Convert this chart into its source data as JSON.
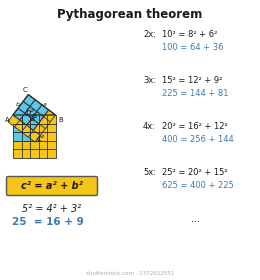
{
  "title": "Pythagorean theorem",
  "title_fontsize": 8.5,
  "bg_color": "#ffffff",
  "cyan_color": "#5bc8e8",
  "yellow_color": "#f5c518",
  "dark_color": "#1a1a1a",
  "blue_text_color": "#3d7ab5",
  "formula_text": "c² = a² + b²",
  "base_eq_line1": "5² = 4² + 3²",
  "base_eq_line2": "25  = 16 + 9",
  "multiples": [
    {
      "mult": "2x:",
      "eq1": "10² = 8² + 6²",
      "eq2": "100 = 64 + 36"
    },
    {
      "mult": "3x:",
      "eq1": "15² = 12² + 9²",
      "eq2": "225 = 144 + 81"
    },
    {
      "mult": "4x:",
      "eq1": "20² = 16² + 12²",
      "eq2": "400 = 256 + 144"
    },
    {
      "mult": "5x:",
      "eq1": "25² = 20² + 15²",
      "eq2": "625 = 400 + 225"
    }
  ],
  "dots": "...",
  "watermark": "shutterstock.com · 2372632551",
  "scale": 8.5
}
